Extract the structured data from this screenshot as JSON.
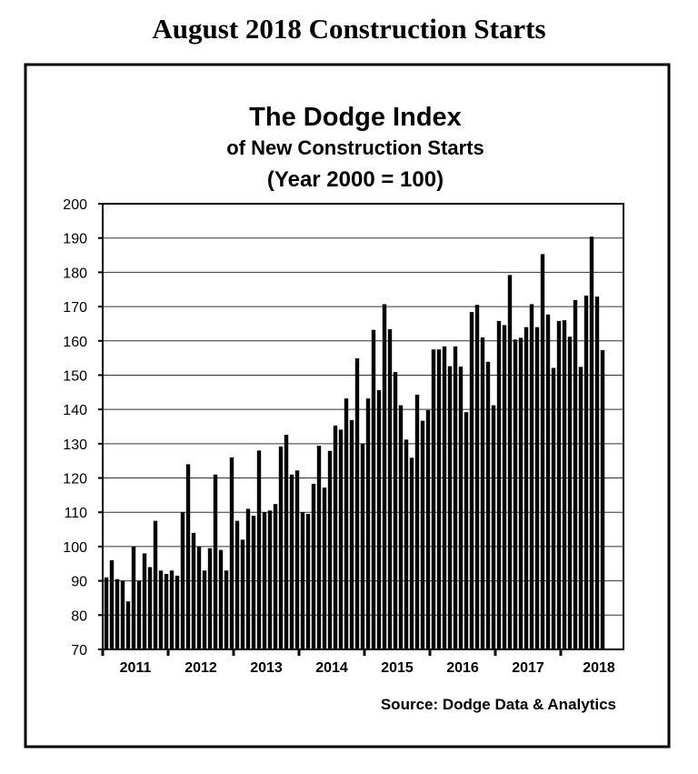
{
  "page_heading": "August 2018 Construction Starts",
  "chart_data": {
    "type": "bar",
    "title": "The Dodge Index",
    "subtitle": "of New Construction Starts",
    "subtitle2": "(Year 2000 = 100)",
    "source": "Source:  Dodge Data & Analytics",
    "xlabel": "",
    "ylabel": "",
    "ylim": [
      70,
      200
    ],
    "yticks": [
      70,
      80,
      90,
      100,
      110,
      120,
      130,
      140,
      150,
      160,
      170,
      180,
      190,
      200
    ],
    "grid": true,
    "bar_color": "#000000",
    "years": [
      "2011",
      "2012",
      "2013",
      "2014",
      "2015",
      "2016",
      "2017",
      "2018"
    ],
    "frequency": "monthly",
    "start": "2011-01",
    "end": "2018-08",
    "values": [
      91,
      96,
      90.5,
      90,
      84,
      100,
      90,
      98,
      94,
      107.5,
      93,
      92,
      93,
      91.5,
      110,
      124,
      104,
      100,
      93,
      99.5,
      121,
      99,
      93,
      126,
      107.5,
      102,
      111,
      109,
      128,
      110,
      110.5,
      112.4,
      129.2,
      132.6,
      121,
      122.2,
      110,
      109.5,
      118.3,
      129.4,
      117.2,
      127.9,
      135.3,
      134.1,
      143.2,
      136.9,
      154.9,
      130,
      143.2,
      163.2,
      145.6,
      170.7,
      163.4,
      150.9,
      141.2,
      131.2,
      125.9,
      144.3,
      136.7,
      139.8,
      157.5,
      157.5,
      158.4,
      152.6,
      158.4,
      152.5,
      139.2,
      168.4,
      170.5,
      161,
      153.9,
      141.2,
      165.8,
      164.6,
      179.2,
      160.4,
      160.9,
      164,
      170.7,
      164,
      185.3,
      167.7,
      152.1,
      165.8,
      166,
      161.2,
      171.9,
      152.4,
      173.2,
      190.4,
      172.9,
      157.3
    ]
  }
}
